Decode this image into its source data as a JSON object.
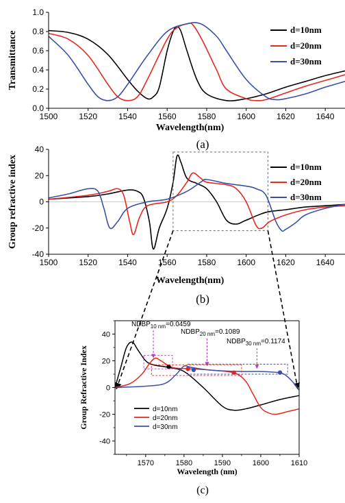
{
  "chart_data": [
    {
      "panel": "(a)",
      "type": "line",
      "xlabel": "Wavelength(nm)",
      "ylabel": "Transmittance",
      "xlim": [
        1500,
        1650
      ],
      "ylim": [
        0.0,
        1.0
      ],
      "xticks": [
        "1500",
        "1520",
        "1540",
        "1560",
        "1580",
        "1600",
        "1620",
        "1640"
      ],
      "yticks": [
        "0.0",
        "0.2",
        "0.4",
        "0.6",
        "0.8",
        "1.0"
      ],
      "legend_position": "top-right",
      "series": [
        {
          "name": "d=10nm",
          "color": "#000000",
          "x": [
            1500,
            1510,
            1520,
            1530,
            1540,
            1545,
            1550,
            1553,
            1556,
            1560,
            1563,
            1565,
            1567,
            1570,
            1575,
            1580,
            1590,
            1600,
            1610,
            1620,
            1630,
            1640,
            1650
          ],
          "y": [
            0.81,
            0.79,
            0.72,
            0.56,
            0.3,
            0.18,
            0.1,
            0.12,
            0.22,
            0.6,
            0.8,
            0.85,
            0.8,
            0.6,
            0.3,
            0.15,
            0.08,
            0.1,
            0.15,
            0.22,
            0.28,
            0.34,
            0.39
          ]
        },
        {
          "name": "d=20nm",
          "color": "#e8261e",
          "x": [
            1500,
            1510,
            1520,
            1530,
            1535,
            1540,
            1545,
            1550,
            1560,
            1565,
            1570,
            1573,
            1578,
            1585,
            1590,
            1600,
            1605,
            1610,
            1620,
            1630,
            1640,
            1650
          ],
          "y": [
            0.78,
            0.72,
            0.55,
            0.25,
            0.12,
            0.08,
            0.12,
            0.3,
            0.72,
            0.84,
            0.88,
            0.87,
            0.7,
            0.4,
            0.2,
            0.1,
            0.08,
            0.09,
            0.16,
            0.23,
            0.29,
            0.35
          ]
        },
        {
          "name": "d=30nm",
          "color": "#3a4fa8",
          "x": [
            1500,
            1510,
            1520,
            1525,
            1530,
            1535,
            1540,
            1550,
            1560,
            1570,
            1577,
            1585,
            1590,
            1600,
            1610,
            1615,
            1620,
            1630,
            1640,
            1650
          ],
          "y": [
            0.75,
            0.55,
            0.25,
            0.12,
            0.08,
            0.12,
            0.25,
            0.55,
            0.8,
            0.88,
            0.88,
            0.75,
            0.6,
            0.3,
            0.12,
            0.09,
            0.1,
            0.15,
            0.22,
            0.28
          ]
        }
      ]
    },
    {
      "panel": "(b)",
      "type": "line",
      "xlabel": "Wavelength(nm)",
      "ylabel": "Group refractive index",
      "xlim": [
        1500,
        1650
      ],
      "ylim": [
        -40,
        40
      ],
      "xticks": [
        "1500",
        "1520",
        "1540",
        "1560",
        "1580",
        "1600",
        "1620",
        "1640"
      ],
      "yticks": [
        "-40",
        "-20",
        "0",
        "20",
        "40"
      ],
      "legend_position": "right",
      "series": [
        {
          "name": "d=10nm",
          "color": "#000000",
          "x": [
            1500,
            1520,
            1530,
            1540,
            1545,
            1548,
            1551,
            1553,
            1556,
            1560,
            1563,
            1565,
            1567,
            1570,
            1575,
            1580,
            1585,
            1590,
            1595,
            1600,
            1610,
            1620,
            1630,
            1640,
            1650
          ],
          "y": [
            2,
            4,
            6,
            9,
            8,
            3,
            -15,
            -36,
            -20,
            -5,
            15,
            35,
            30,
            18,
            14,
            10,
            0,
            -14,
            -17,
            -14,
            -8,
            -6,
            -4,
            -3,
            -2
          ]
        },
        {
          "name": "d=20nm",
          "color": "#e8261e",
          "x": [
            1500,
            1520,
            1530,
            1535,
            1538,
            1541,
            1543,
            1546,
            1550,
            1560,
            1565,
            1570,
            1573,
            1577,
            1580,
            1590,
            1595,
            1600,
            1605,
            1608,
            1612,
            1620,
            1630,
            1640,
            1650
          ],
          "y": [
            2,
            5,
            8,
            10,
            5,
            -15,
            -25,
            -12,
            -3,
            0,
            5,
            15,
            22,
            18,
            15,
            13,
            10,
            0,
            -18,
            -20,
            -15,
            -10,
            -6,
            -4,
            -3
          ]
        },
        {
          "name": "d=30nm",
          "color": "#3a4fa8",
          "x": [
            1500,
            1510,
            1520,
            1525,
            1528,
            1531,
            1535,
            1540,
            1550,
            1560,
            1570,
            1577,
            1580,
            1590,
            1600,
            1605,
            1610,
            1615,
            1618,
            1620,
            1625,
            1630,
            1640,
            1650
          ],
          "y": [
            3,
            6,
            10,
            8,
            -5,
            -20,
            -15,
            -5,
            0,
            2,
            8,
            15,
            17,
            14,
            12,
            10,
            5,
            -15,
            -22,
            -21,
            -16,
            -10,
            -5,
            -2
          ]
        }
      ],
      "inset_box": {
        "x": [
          1563,
          1611
        ],
        "y": [
          -22,
          38
        ]
      }
    },
    {
      "panel": "(c)",
      "type": "line",
      "xlabel": "Wavelength (nm)",
      "ylabel": "Group Refractive Index",
      "xlim": [
        1562,
        1610
      ],
      "ylim": [
        -50,
        50
      ],
      "xticks": [
        "1570",
        "1580",
        "1590",
        "1600",
        "1610"
      ],
      "yticks": [
        "40",
        "20",
        "0",
        "-20",
        "-40"
      ],
      "legend_position": "bottom-left",
      "annotations": [
        "NDBP10 nm=0.0459",
        "NDBP20 nm=0.1089",
        "NDBP30 nm=0.1174"
      ],
      "series": [
        {
          "name": "d=10nm",
          "color": "#000000",
          "x": [
            1562,
            1563.5,
            1565,
            1566.5,
            1568,
            1570,
            1572,
            1576,
            1580,
            1585,
            1590,
            1593,
            1596,
            1600,
            1605,
            1610
          ],
          "y": [
            0,
            15,
            30,
            34,
            28,
            20,
            17,
            15,
            12,
            0,
            -14,
            -17,
            -16,
            -13,
            -9,
            -6
          ]
        },
        {
          "name": "d=20nm",
          "color": "#e8261e",
          "x": [
            1562,
            1566,
            1569,
            1571,
            1572.5,
            1574,
            1577,
            1582,
            1587,
            1593,
            1596,
            1598,
            1600,
            1602,
            1604,
            1607,
            1610
          ],
          "y": [
            0,
            3,
            10,
            18,
            22,
            20,
            15,
            14,
            13,
            11,
            5,
            -5,
            -15,
            -19,
            -20,
            -18,
            -16
          ]
        },
        {
          "name": "d=30nm",
          "color": "#3a4fa8",
          "x": [
            1562,
            1570,
            1575,
            1578,
            1580,
            1582,
            1587,
            1595,
            1600,
            1605,
            1607,
            1609,
            1610
          ],
          "y": [
            0,
            1,
            3,
            10,
            16,
            15,
            13,
            12,
            12,
            11,
            8,
            2,
            -2
          ]
        }
      ],
      "markers": [
        {
          "x": 1576,
          "y": 15.5,
          "color": "#000000"
        },
        {
          "x": 1581,
          "y": 14,
          "color": "#e8261e"
        },
        {
          "x": 1593,
          "y": 11.2,
          "color": "#e8261e"
        },
        {
          "x": 1582.5,
          "y": 13.2,
          "color": "#3a4fa8"
        },
        {
          "x": 1605,
          "y": 11.2,
          "color": "#3a4fa8"
        }
      ]
    }
  ],
  "captions": {
    "a": "(a)",
    "b": "(b)",
    "c": "(c)"
  },
  "ndbp": {
    "d10": {
      "pre": "NDBP",
      "sub": "10 nm",
      "post": "=0.0459"
    },
    "d20": {
      "pre": "NDBP",
      "sub": "20 nm",
      "post": "=0.1089"
    },
    "d30": {
      "pre": "NDBP",
      "sub": "30 nm",
      "post": "=0.1174"
    }
  }
}
